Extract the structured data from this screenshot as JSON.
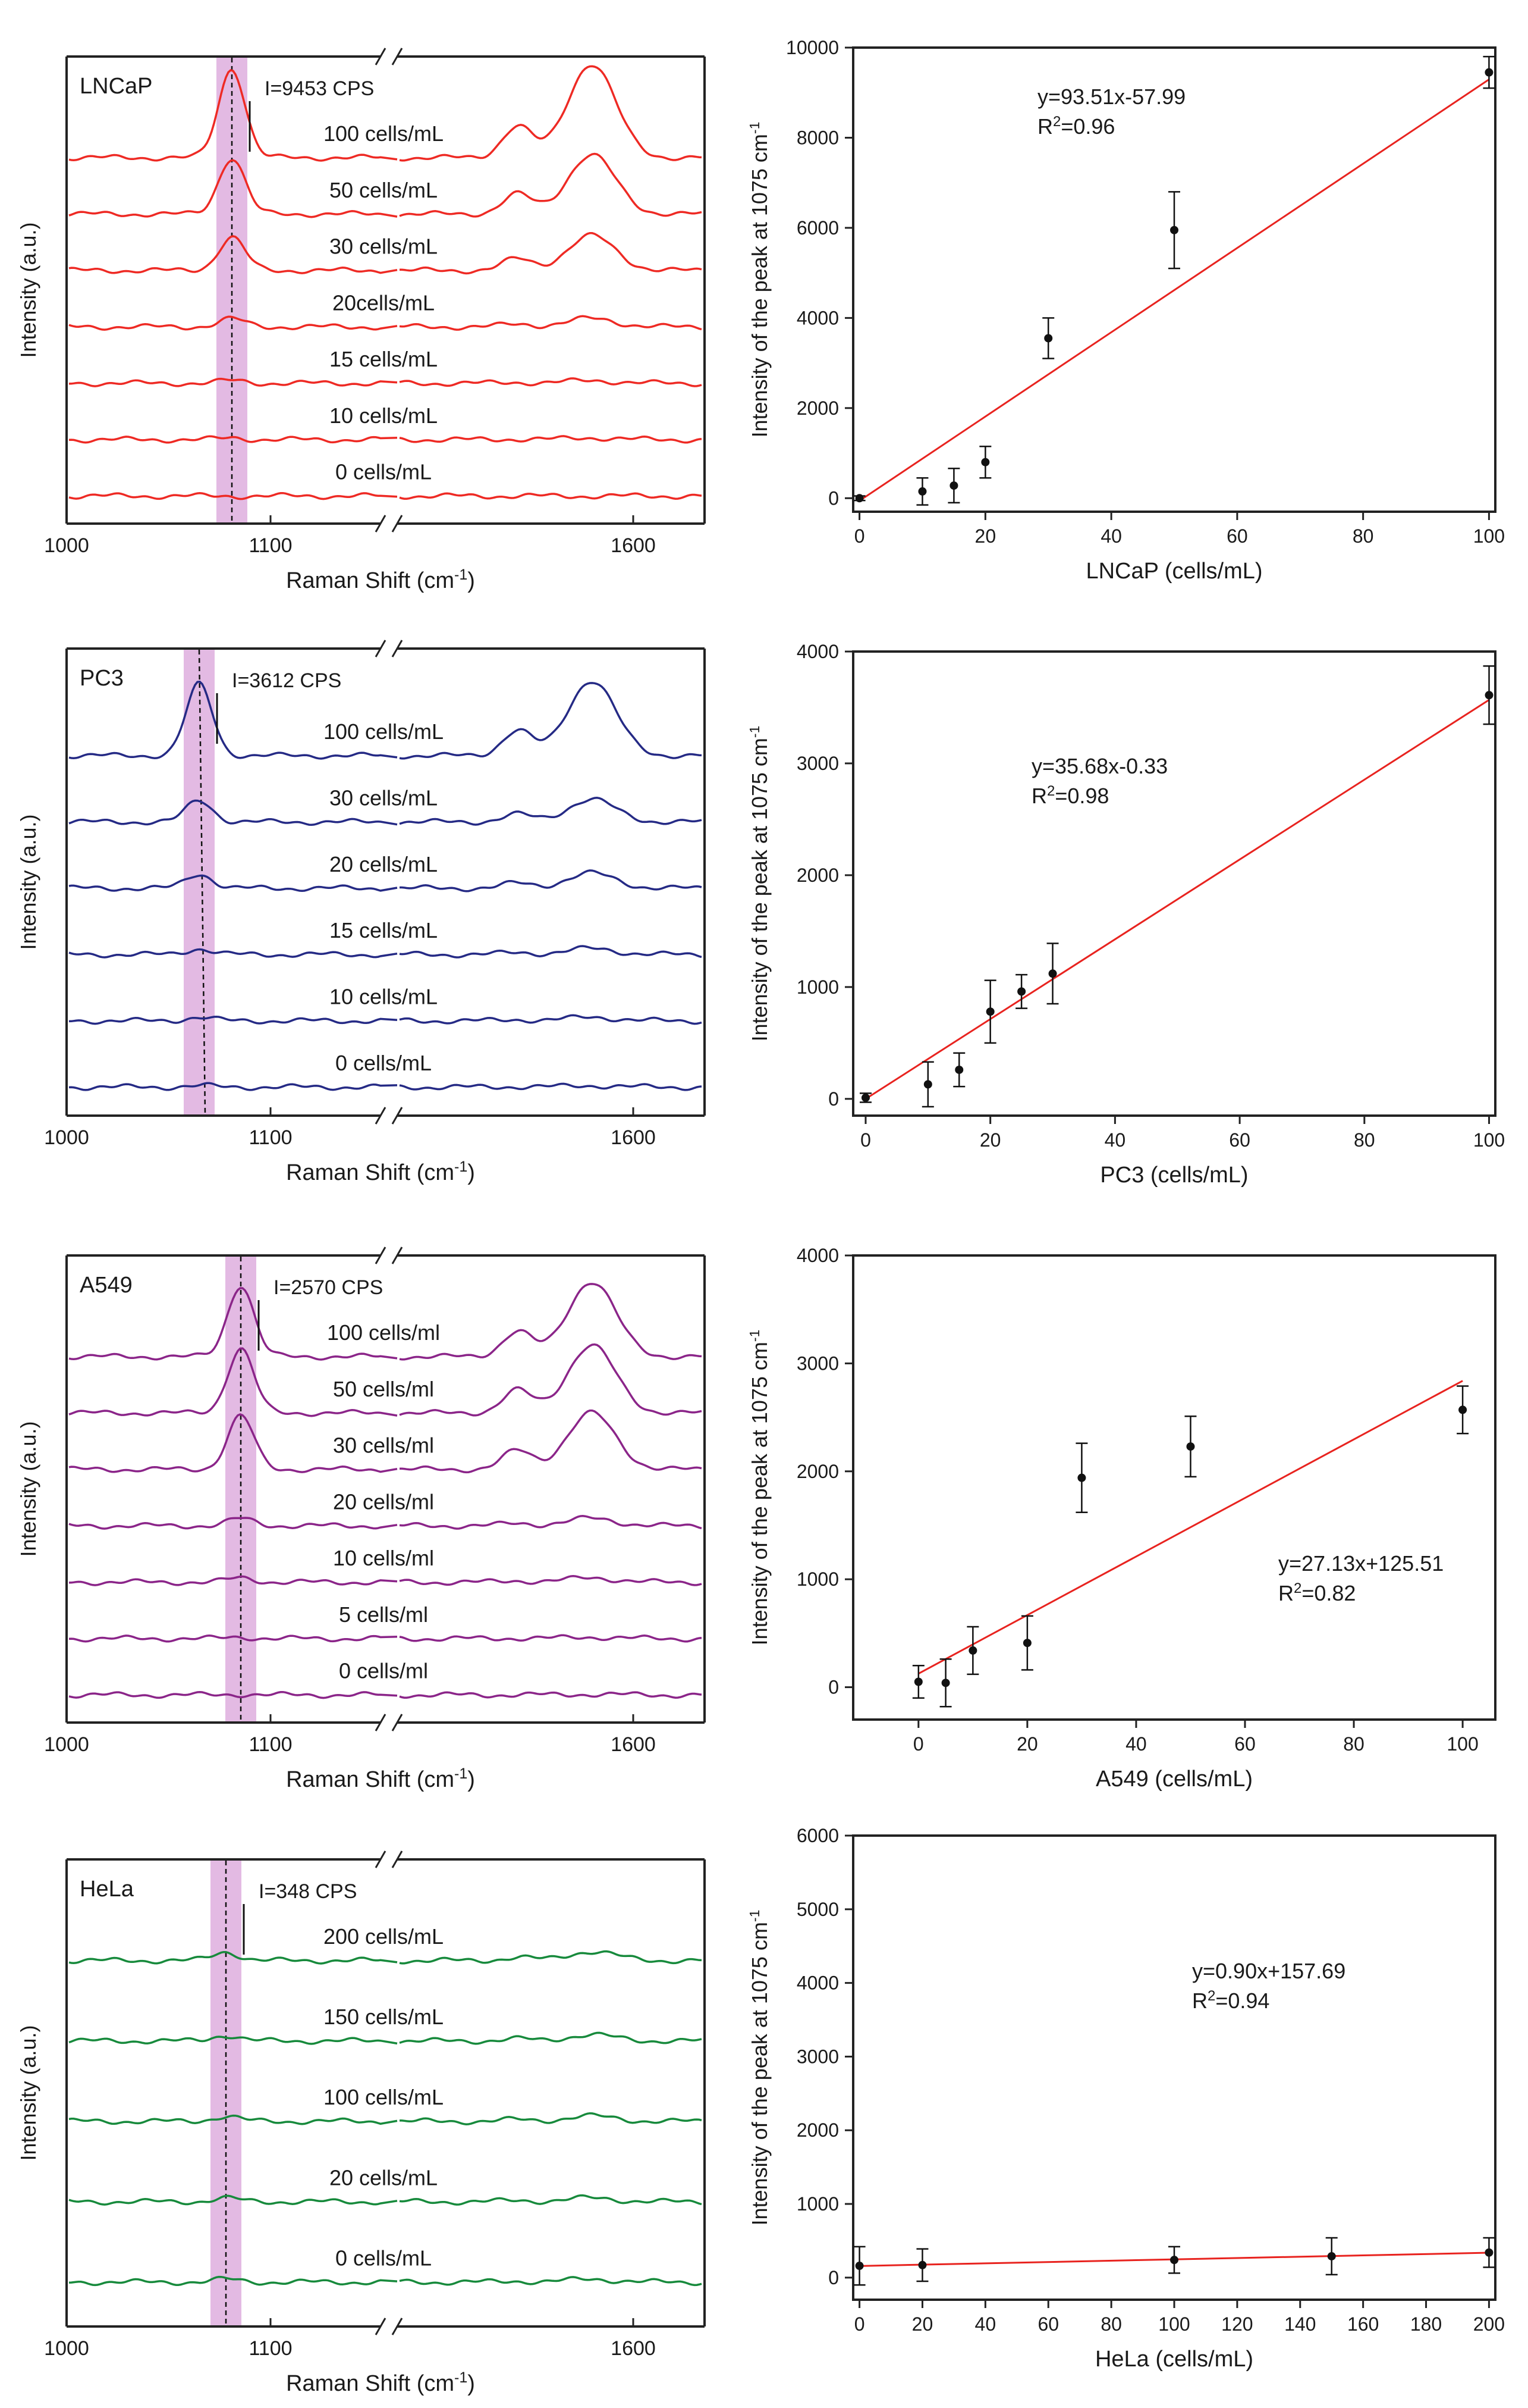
{
  "figure": {
    "raman_xlabel": "Raman Shift (cm",
    "raman_xlabel_sup": "-1",
    "raman_xlabel_end": ")",
    "raman_ylabel": "Intensity (a.u.)",
    "cal_ylabel": "Intensity of the peak at 1075 cm",
    "cal_ylabel_sup": "-1",
    "r2_prefix": "R",
    "r2_sup": "2"
  },
  "chart_data": [
    {
      "type": "line",
      "title": "LNCaP",
      "xlabel": "Raman Shift (cm-1)",
      "ylabel": "Intensity (a.u.)",
      "xticks": [
        "1000",
        "1100",
        "1600"
      ],
      "axis_break": true,
      "color": "#ee2a24",
      "annotation": "I=9453 CPS",
      "peak_position_cm-1": 1075,
      "series": [
        {
          "name": "100 cells/mL",
          "label": "100 cells/mL",
          "relative_peak_height": 1.0
        },
        {
          "name": "50 cells/mL",
          "label": "50 cells/mL",
          "relative_peak_height": 0.63
        },
        {
          "name": "30 cells/mL",
          "label": "30 cells/mL",
          "relative_peak_height": 0.37
        },
        {
          "name": "20cells/mL",
          "label": "20cells/mL",
          "relative_peak_height": 0.09
        },
        {
          "name": "15 cells/mL",
          "label": "15 cells/mL",
          "relative_peak_height": 0.03
        },
        {
          "name": "10 cells/mL",
          "label": "10 cells/mL",
          "relative_peak_height": 0.02
        },
        {
          "name": "0 cells/mL",
          "label": "0 cells/mL",
          "relative_peak_height": 0.0
        }
      ]
    },
    {
      "type": "scatter",
      "xlabel": "LNCaP (cells/mL)",
      "ylabel": "Intensity of the peak at 1075 cm-1",
      "xlim": [
        -1,
        101
      ],
      "ylim": [
        -300,
        10000
      ],
      "xticks": [
        0,
        20,
        40,
        60,
        80,
        100
      ],
      "yticks": [
        0,
        2000,
        4000,
        6000,
        8000,
        10000
      ],
      "x": [
        0,
        10,
        15,
        20,
        30,
        50,
        100
      ],
      "y": [
        0,
        150,
        280,
        800,
        3550,
        5950,
        9450
      ],
      "yerr": [
        50,
        300,
        380,
        350,
        450,
        850,
        350
      ],
      "fit": {
        "slope": 93.51,
        "intercept": -57.99,
        "xrange": [
          0,
          100
        ],
        "equation": "y=93.51x-57.99",
        "r2": "=0.96"
      }
    },
    {
      "type": "line",
      "title": "PC3",
      "xlabel": "Raman Shift (cm-1)",
      "ylabel": "Intensity (a.u.)",
      "xticks": [
        "1000",
        "1100",
        "1600"
      ],
      "axis_break": true,
      "color": "#252a85",
      "annotation": "I=3612 CPS",
      "peak_position_cm-1": 1075,
      "series": [
        {
          "name": "100 cells/mL",
          "label": "100 cells/mL",
          "relative_peak_height": 1.0
        },
        {
          "name": "30 cells/mL",
          "label": "30 cells/mL",
          "relative_peak_height": 0.3
        },
        {
          "name": "20 cells/mL",
          "label": "20 cells/mL",
          "relative_peak_height": 0.2
        },
        {
          "name": "15 cells/mL",
          "label": "15 cells/mL",
          "relative_peak_height": 0.08
        },
        {
          "name": "10 cells/mL",
          "label": "10 cells/mL",
          "relative_peak_height": 0.05
        },
        {
          "name": "0 cells/mL",
          "label": "0 cells/mL",
          "relative_peak_height": 0.02
        }
      ]
    },
    {
      "type": "scatter",
      "xlabel": "PC3 (cells/mL)",
      "ylabel": "Intensity of the peak at 1075 cm-1",
      "xlim": [
        -2,
        101
      ],
      "ylim": [
        -150,
        4000
      ],
      "xticks": [
        0,
        20,
        40,
        60,
        80,
        100
      ],
      "yticks": [
        0,
        1000,
        2000,
        3000,
        4000
      ],
      "x": [
        0,
        10,
        15,
        20,
        25,
        30,
        100
      ],
      "y": [
        10,
        130,
        260,
        780,
        960,
        1120,
        3610
      ],
      "yerr": [
        40,
        200,
        150,
        280,
        150,
        270,
        260
      ],
      "fit": {
        "slope": 35.68,
        "intercept": -0.33,
        "xrange": [
          0,
          100
        ],
        "equation": "y=35.68x-0.33",
        "r2": "=0.98"
      }
    },
    {
      "type": "line",
      "title": "A549",
      "xlabel": "Raman Shift (cm-1)",
      "ylabel": "Intensity (a.u.)",
      "xticks": [
        "1000",
        "1100",
        "1600"
      ],
      "axis_break": true,
      "color": "#8b2589",
      "annotation": "I=2570 CPS",
      "peak_position_cm-1": 1075,
      "series": [
        {
          "name": "100 cells/ml",
          "label": "100 cells/ml",
          "relative_peak_height": 1.0
        },
        {
          "name": "50 cells/ml",
          "label": "50 cells/ml",
          "relative_peak_height": 0.9
        },
        {
          "name": "30 cells/ml",
          "label": "30 cells/ml",
          "relative_peak_height": 0.75
        },
        {
          "name": "20 cells/ml",
          "label": "20 cells/ml",
          "relative_peak_height": 0.1
        },
        {
          "name": "10 cells/ml",
          "label": "10 cells/ml",
          "relative_peak_height": 0.06
        },
        {
          "name": "5 cells/ml",
          "label": "5 cells/ml",
          "relative_peak_height": 0.02
        },
        {
          "name": "0 cells/ml",
          "label": "0 cells/ml",
          "relative_peak_height": 0.01
        }
      ]
    },
    {
      "type": "scatter",
      "xlabel": "A549 (cells/mL)",
      "ylabel": "Intensity of the peak at 1075 cm-1",
      "xlim": [
        -12,
        106
      ],
      "ylim": [
        -300,
        4000
      ],
      "xticks": [
        0,
        20,
        40,
        60,
        80,
        100
      ],
      "yticks": [
        0,
        1000,
        2000,
        3000,
        4000
      ],
      "x": [
        0,
        5,
        10,
        20,
        30,
        50,
        100
      ],
      "y": [
        50,
        40,
        340,
        410,
        1940,
        2230,
        2570
      ],
      "yerr": [
        150,
        220,
        220,
        250,
        320,
        280,
        220
      ],
      "fit": {
        "slope": 27.13,
        "intercept": 125.51,
        "xrange": [
          0,
          100
        ],
        "equation": "y=27.13x+125.51",
        "r2": "=0.82"
      }
    },
    {
      "type": "line",
      "title": "HeLa",
      "xlabel": "Raman Shift (cm-1)",
      "ylabel": "Intensity (a.u.)",
      "xticks": [
        "1000",
        "1100",
        "1600"
      ],
      "axis_break": true,
      "color": "#178a3c",
      "annotation": "I=348 CPS",
      "peak_position_cm-1": 1075,
      "series": [
        {
          "name": "200 cells/mL",
          "label": "200 cells/mL",
          "relative_peak_height": 0.12
        },
        {
          "name": "150 cells/mL",
          "label": "150 cells/mL",
          "relative_peak_height": 0.08
        },
        {
          "name": "100 cells/mL",
          "label": "100 cells/mL",
          "relative_peak_height": 0.07
        },
        {
          "name": "20 cells/mL",
          "label": "20 cells/mL",
          "relative_peak_height": 0.05
        },
        {
          "name": "0 cells/mL",
          "label": "0 cells/mL",
          "relative_peak_height": 0.04
        }
      ]
    },
    {
      "type": "scatter",
      "xlabel": "HeLa (cells/mL)",
      "ylabel": "Intensity of the peak at 1075 cm-1",
      "xlim": [
        -2,
        202
      ],
      "ylim": [
        -300,
        6000
      ],
      "xticks": [
        0,
        20,
        40,
        60,
        80,
        100,
        120,
        140,
        160,
        180,
        200
      ],
      "yticks": [
        0,
        1000,
        2000,
        3000,
        4000,
        5000,
        6000
      ],
      "x": [
        0,
        20,
        100,
        150,
        200
      ],
      "y": [
        160,
        170,
        240,
        290,
        340
      ],
      "yerr": [
        260,
        220,
        180,
        250,
        200
      ],
      "fit": {
        "slope": 0.9,
        "intercept": 157.69,
        "xrange": [
          0,
          200
        ],
        "equation": "y=0.90x+157.69",
        "r2": "=0.94"
      }
    }
  ]
}
